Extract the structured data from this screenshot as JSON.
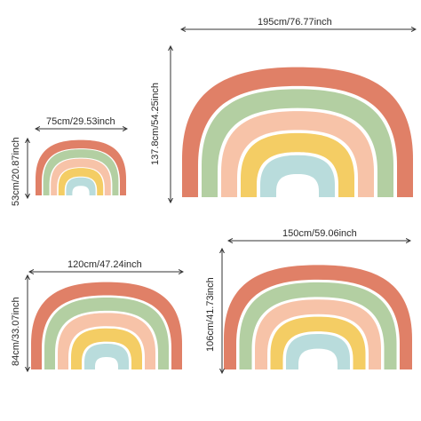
{
  "products": [
    {
      "id": "rainbow-small",
      "width_label": "75cm/29.53inch",
      "height_label": "53cm/20.87inch"
    },
    {
      "id": "rainbow-xlarge",
      "width_label": "195cm/76.77inch",
      "height_label": "137.8cm/54.25inch"
    },
    {
      "id": "rainbow-medium",
      "width_label": "120cm/47.24inch",
      "height_label": "84cm/33.07inch"
    },
    {
      "id": "rainbow-large",
      "width_label": "150cm/59.06inch",
      "height_label": "106cm/41.73inch"
    }
  ],
  "colors": {
    "band_1": "#e08067",
    "band_2": "#b3cfa2",
    "band_3": "#f7c3a8",
    "band_4": "#f4cd64",
    "band_5": "#b9dcdc",
    "gap": "#ffffff",
    "dimension_line": "#333333"
  }
}
